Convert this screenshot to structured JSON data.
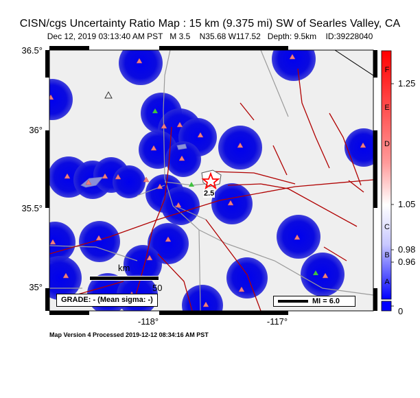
{
  "header": {
    "title": "CISN/cgs Uncertainty Ratio Map : 15 km (9.375 mi) SW of Searles Valley, CA",
    "subtitle": "Dec 12, 2019 03:13:40 AM PST   M 3.5    N35.68 W117.52   Depth: 9.5km    ID:39228040"
  },
  "axes": {
    "lat_ticks": [
      "36.5°",
      "36°",
      "35.5°",
      "35°"
    ],
    "lon_ticks": [
      "-118°",
      "-117°"
    ]
  },
  "legend": {
    "grade": "GRADE: - (Mean sigma: -)",
    "mi": "MI = 6.0",
    "scale_unit": "km",
    "scale_value": "50",
    "epicenter_label": "2.5"
  },
  "colorbar": {
    "letters": [
      "F",
      "E",
      "D",
      "C",
      "B",
      "A"
    ],
    "values": [
      "1.25",
      "1.05",
      "0.98",
      "0.96",
      "0"
    ],
    "colors": {
      "top": "#ff0000",
      "mid": "#ffffff",
      "bottom": "#0000ff"
    }
  },
  "footer": {
    "processed": "Map Version 4 Processed 2019-12-12 08:34:16 AM PST"
  },
  "colors": {
    "station_area": "#1a1acc",
    "background": "#efefef",
    "faults": "#b00000",
    "roads": "#999999"
  }
}
